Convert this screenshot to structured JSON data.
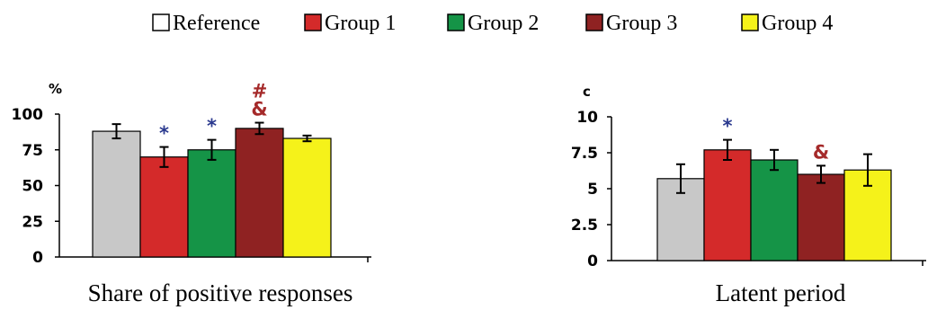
{
  "legend": [
    {
      "label": "Reference",
      "color": "#ffffff"
    },
    {
      "label": "Group 1",
      "color": "#d42a2a"
    },
    {
      "label": "Group 2",
      "color": "#159447"
    },
    {
      "label": "Group 3",
      "color": "#8f2222"
    },
    {
      "label": "Group 4",
      "color": "#f5f21a"
    }
  ],
  "bar_colors": [
    "#c8c8c8",
    "#d42a2a",
    "#159447",
    "#8f2222",
    "#f5f21a"
  ],
  "chart_data": [
    {
      "type": "bar",
      "xlabel": "Share of positive responses",
      "ylabel": "%",
      "ylim": [
        0,
        100
      ],
      "yticks": [
        "0",
        "25",
        "50",
        "75",
        "100"
      ],
      "categories": [
        "Reference",
        "Group 1",
        "Group 2",
        "Group 3",
        "Group 4"
      ],
      "values": [
        88,
        70,
        75,
        90,
        83
      ],
      "errors": [
        5,
        7,
        7,
        4,
        2
      ],
      "annotations": [
        {
          "category": "Group 1",
          "text": "*",
          "color": "#2b3a8f"
        },
        {
          "category": "Group 2",
          "text": "*",
          "color": "#2b3a8f"
        },
        {
          "category": "Group 3",
          "text": "#",
          "color": "#a52a2a"
        },
        {
          "category": "Group 3",
          "text": "&",
          "color": "#a52a2a"
        }
      ]
    },
    {
      "type": "bar",
      "xlabel": "Latent period",
      "ylabel": "c",
      "ylim": [
        0,
        10
      ],
      "yticks": [
        "0",
        "2.5",
        "5",
        "7.5",
        "10"
      ],
      "categories": [
        "Reference",
        "Group 1",
        "Group 2",
        "Group 3",
        "Group 4"
      ],
      "values": [
        5.7,
        7.7,
        7.0,
        6.0,
        6.3
      ],
      "errors": [
        1.0,
        0.7,
        0.7,
        0.6,
        1.1
      ],
      "annotations": [
        {
          "category": "Group 1",
          "text": "*",
          "color": "#2b3a8f"
        },
        {
          "category": "Group 3",
          "text": "&",
          "color": "#a52a2a"
        }
      ]
    }
  ]
}
